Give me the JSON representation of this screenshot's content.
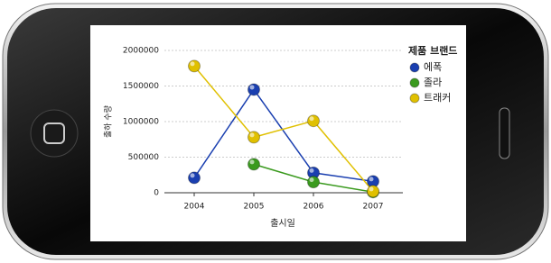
{
  "chart_data": {
    "type": "line",
    "categories": [
      "2004",
      "2005",
      "2006",
      "2007"
    ],
    "series": [
      {
        "name": "에폭",
        "color": "#1a3fb0",
        "values": [
          210000,
          1450000,
          280000,
          160000
        ]
      },
      {
        "name": "졸라",
        "color": "#3a9a1e",
        "values": [
          null,
          400000,
          150000,
          10000
        ]
      },
      {
        "name": "트래커",
        "color": "#e0c000",
        "values": [
          1780000,
          780000,
          1010000,
          20000
        ]
      }
    ],
    "ylim": [
      0,
      2000000
    ],
    "yticks": [
      0,
      500000,
      1000000,
      1500000,
      2000000
    ],
    "xlabel": "출시일",
    "ylabel": "출하 수량",
    "legend_title": "제품 브랜드",
    "grid": true
  }
}
